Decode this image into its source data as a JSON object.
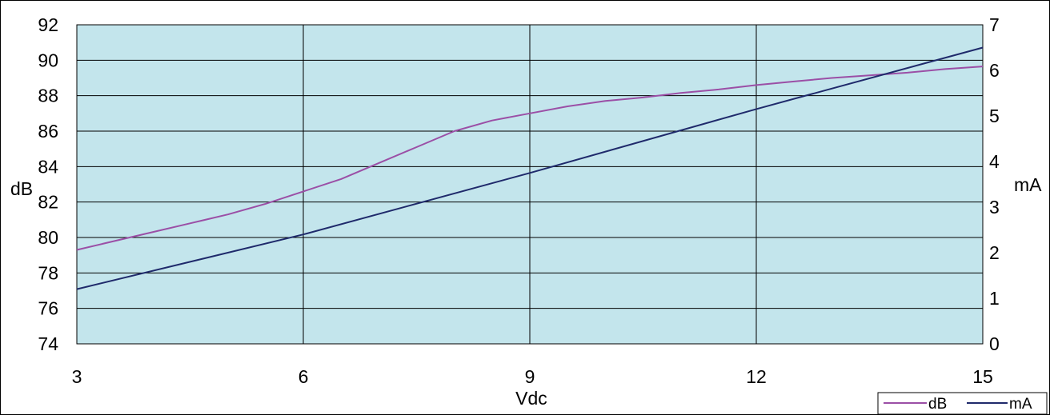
{
  "chart_data": {
    "type": "line",
    "xlabel": "Vdc",
    "ylabel_left": "dB",
    "ylabel_right": "mA",
    "xlim": [
      3,
      15
    ],
    "ylim_left": [
      74,
      92
    ],
    "ylim_right": [
      0,
      7
    ],
    "x_ticks": [
      3,
      6,
      9,
      12,
      15
    ],
    "y_left_ticks": [
      74,
      76,
      78,
      80,
      82,
      84,
      86,
      88,
      90,
      92
    ],
    "y_right_ticks": [
      0,
      1,
      2,
      3,
      4,
      5,
      6,
      7
    ],
    "grid": true,
    "plot_background": "#c3e5ec",
    "legend_position": "bottom-right",
    "series": [
      {
        "name": "dB",
        "axis": "left",
        "color": "#9b4fa6",
        "x": [
          3,
          3.5,
          4,
          4.5,
          5,
          5.5,
          6,
          6.5,
          7,
          7.5,
          8,
          8.5,
          9,
          9.5,
          10,
          10.5,
          11,
          11.5,
          12,
          12.5,
          13,
          13.5,
          14,
          14.5,
          15
        ],
        "values": [
          79.3,
          79.8,
          80.3,
          80.8,
          81.3,
          81.9,
          82.6,
          83.3,
          84.2,
          85.1,
          86.0,
          86.6,
          87.0,
          87.4,
          87.7,
          87.9,
          88.15,
          88.35,
          88.6,
          88.8,
          89.0,
          89.15,
          89.3,
          89.5,
          89.65
        ]
      },
      {
        "name": "mA",
        "axis": "right",
        "color": "#1f2a6b",
        "x": [
          3,
          6,
          9,
          12,
          15
        ],
        "values": [
          1.2,
          2.4,
          3.75,
          5.15,
          6.5
        ]
      }
    ]
  }
}
